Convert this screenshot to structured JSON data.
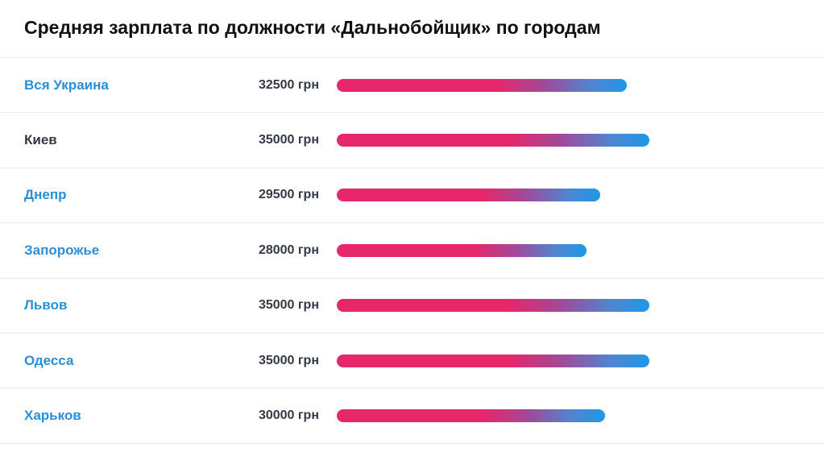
{
  "title": "Средняя зарплата по должности «Дальнобойщик» по городам",
  "max_salary": 35000,
  "colors": {
    "link": "#2b8fd6",
    "text": "#333a44",
    "bar_start": "#e8266a",
    "bar_end": "#1f98e6",
    "divider": "#e8ecf0"
  },
  "rows": [
    {
      "city": "Вся Украина",
      "amount_label": "32500 грн",
      "value": 32500,
      "is_link": true
    },
    {
      "city": "Киев",
      "amount_label": "35000 грн",
      "value": 35000,
      "is_link": false
    },
    {
      "city": "Днепр",
      "amount_label": "29500 грн",
      "value": 29500,
      "is_link": true
    },
    {
      "city": "Запорожье",
      "amount_label": "28000 грн",
      "value": 28000,
      "is_link": true
    },
    {
      "city": "Львов",
      "amount_label": "35000 грн",
      "value": 35000,
      "is_link": true
    },
    {
      "city": "Одесса",
      "amount_label": "35000 грн",
      "value": 35000,
      "is_link": true
    },
    {
      "city": "Харьков",
      "amount_label": "30000 грн",
      "value": 30000,
      "is_link": true
    }
  ]
}
